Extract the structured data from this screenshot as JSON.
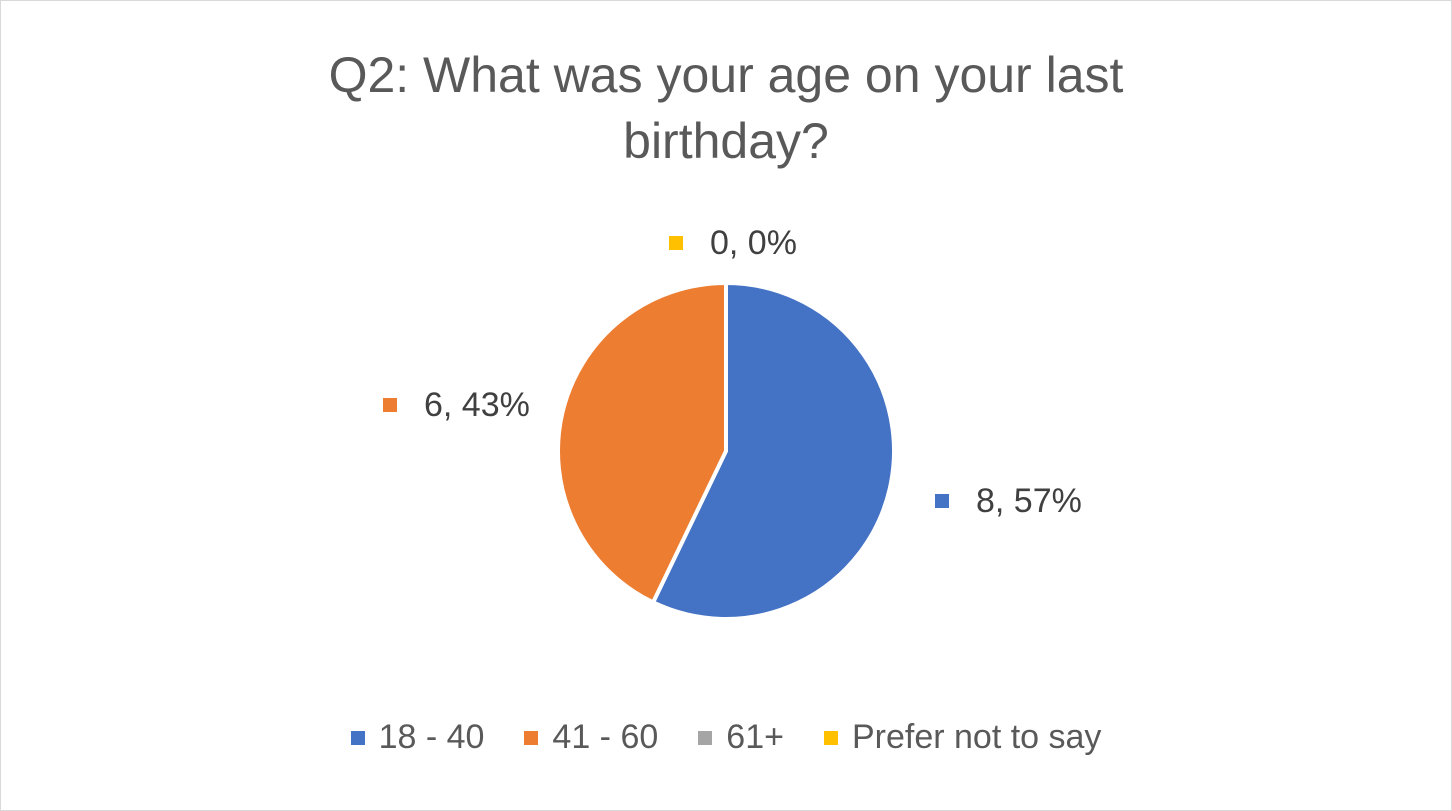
{
  "chart_data": {
    "type": "pie",
    "title": "Q2: What was your age on your last birthday?",
    "categories": [
      "18 - 40",
      "41 - 60",
      "61+",
      "Prefer not to say"
    ],
    "values": [
      8,
      6,
      0,
      0
    ],
    "colors": [
      "#4472c4",
      "#ed7d31",
      "#a5a5a5",
      "#ffc000"
    ],
    "data_labels": [
      {
        "category": "18 - 40",
        "text": "8, 57%",
        "color": "#4472c4"
      },
      {
        "category": "41 - 60",
        "text": "6, 43%",
        "color": "#ed7d31"
      },
      {
        "category": "Prefer not to say",
        "text": "0, 0%",
        "color": "#ffc000"
      }
    ],
    "legend_position": "bottom"
  }
}
